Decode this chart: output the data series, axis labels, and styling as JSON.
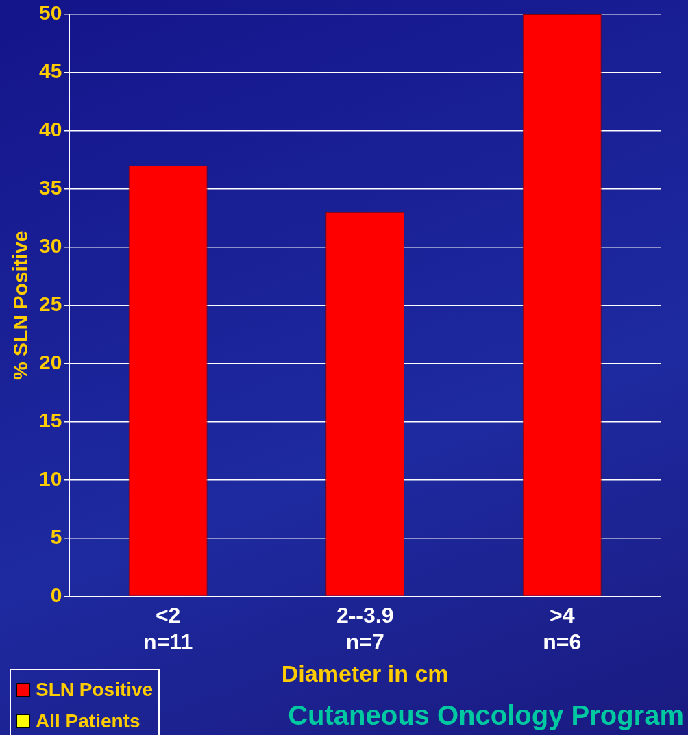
{
  "chart_data": {
    "type": "bar",
    "categories": [
      "<2\nn=11",
      "2--3.9\nn=7",
      ">4\nn=6"
    ],
    "series": [
      {
        "name": "SLN Positive",
        "color": "#ff0000",
        "values": [
          37,
          33,
          50
        ]
      },
      {
        "name": "All Patients",
        "color": "#ffff00",
        "values": [
          null,
          null,
          null
        ]
      }
    ],
    "ylabel": "% SLN Positive",
    "xlabel": "Diameter in cm",
    "ylim": [
      0,
      50
    ],
    "yticks": [
      0,
      5,
      10,
      15,
      20,
      25,
      30,
      35,
      40,
      45,
      50
    ],
    "grid": "y",
    "legend": "bottom left",
    "annotations": [
      "Cutaneous Oncology Program"
    ]
  }
}
